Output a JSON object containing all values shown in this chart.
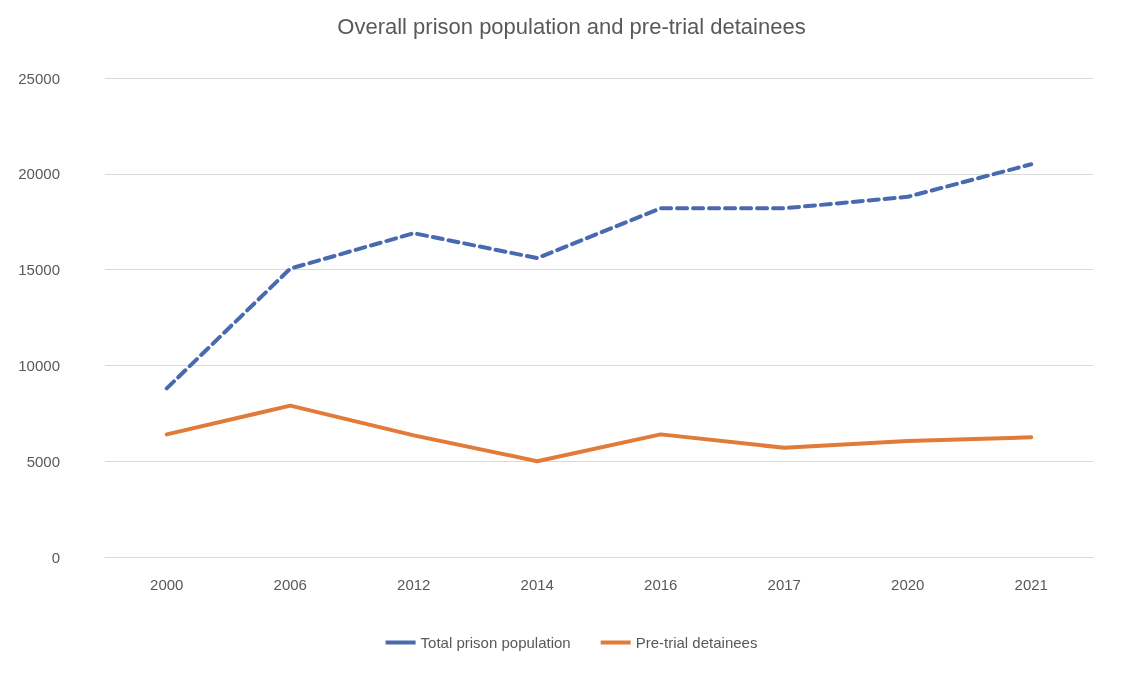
{
  "chart_data": {
    "type": "line",
    "title": "Overall prison population and pre-trial detainees",
    "categories": [
      "2000",
      "2006",
      "2012",
      "2014",
      "2016",
      "2017",
      "2020",
      "2021"
    ],
    "series": [
      {
        "name": "Total prison population",
        "color": "#4a6ab0",
        "line_style": "dashed",
        "values": [
          8800,
          15050,
          16900,
          15600,
          18200,
          18200,
          18800,
          20500
        ]
      },
      {
        "name": "Pre-trial detainees",
        "color": "#e07b39",
        "line_style": "solid",
        "values": [
          6400,
          7900,
          6350,
          5000,
          6400,
          5700,
          6050,
          6250
        ]
      }
    ],
    "ylim": [
      0,
      25000
    ],
    "yticks": [
      0,
      5000,
      10000,
      15000,
      20000,
      25000
    ],
    "grid": "y",
    "legend": "bottom",
    "marker": "none"
  }
}
